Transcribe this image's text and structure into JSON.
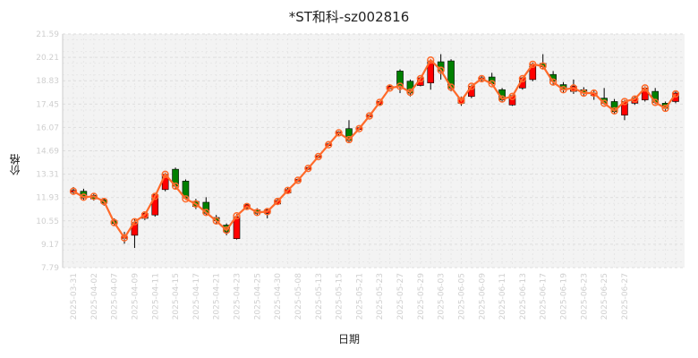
{
  "chart_data": {
    "type": "candlestick",
    "title": "*ST和科-sz002816",
    "xlabel": "日期",
    "ylabel": "价格",
    "ylim": [
      7.79,
      21.59
    ],
    "y_ticks": [
      "7.79",
      "9.17",
      "10.55",
      "11.93",
      "13.31",
      "14.69",
      "16.07",
      "17.45",
      "18.83",
      "20.21",
      "21.59"
    ],
    "grid": true,
    "line_series_color": "#ff6a2a",
    "up_color": "#ff0000",
    "down_color": "#008000",
    "x_tick_labels": [
      "2025-03-31",
      "2025-04-02",
      "2025-04-07",
      "2025-04-09",
      "2025-04-11",
      "2025-04-15",
      "2025-04-17",
      "2025-04-21",
      "2025-04-23",
      "2025-04-25",
      "2025-04-30",
      "2025-05-08",
      "2025-05-13",
      "2025-05-15",
      "2025-05-21",
      "2025-05-23",
      "2025-05-27",
      "2025-05-29",
      "2025-06-03",
      "2025-06-05",
      "2025-06-09",
      "2025-06-11",
      "2025-06-13",
      "2025-06-17",
      "2025-06-19",
      "2025-06-23",
      "2025-06-25",
      "2025-06-27"
    ],
    "candles": [
      {
        "o": 12.25,
        "c": 12.35,
        "h": 12.55,
        "l": 12.1
      },
      {
        "o": 12.3,
        "c": 11.9,
        "h": 12.45,
        "l": 11.8
      },
      {
        "o": 12.05,
        "c": 11.85,
        "h": 12.15,
        "l": 11.75
      },
      {
        "o": 11.8,
        "c": 11.6,
        "h": 11.85,
        "l": 11.45
      },
      {
        "o": 10.55,
        "c": 10.4,
        "h": 10.7,
        "l": 10.3
      },
      {
        "o": 9.55,
        "c": 9.6,
        "h": 9.9,
        "l": 9.2
      },
      {
        "o": 9.7,
        "c": 10.45,
        "h": 10.65,
        "l": 8.95
      },
      {
        "o": 10.7,
        "c": 11.0,
        "h": 11.1,
        "l": 10.6
      },
      {
        "o": 10.9,
        "c": 12.1,
        "h": 12.2,
        "l": 10.8
      },
      {
        "o": 12.4,
        "c": 13.3,
        "h": 13.4,
        "l": 12.3
      },
      {
        "o": 13.6,
        "c": 12.6,
        "h": 13.7,
        "l": 12.4
      },
      {
        "o": 12.9,
        "c": 11.9,
        "h": 13.0,
        "l": 11.8
      },
      {
        "o": 11.7,
        "c": 11.4,
        "h": 11.85,
        "l": 11.25
      },
      {
        "o": 11.65,
        "c": 11.0,
        "h": 11.95,
        "l": 10.9
      },
      {
        "o": 10.75,
        "c": 10.55,
        "h": 10.9,
        "l": 10.4
      },
      {
        "o": 10.3,
        "c": 9.9,
        "h": 10.4,
        "l": 9.7
      },
      {
        "o": 9.5,
        "c": 10.8,
        "h": 10.95,
        "l": 9.45
      },
      {
        "o": 11.3,
        "c": 11.5,
        "h": 11.6,
        "l": 11.2
      },
      {
        "o": 11.2,
        "c": 11.0,
        "h": 11.3,
        "l": 10.85
      },
      {
        "o": 11.0,
        "c": 11.2,
        "h": 11.3,
        "l": 10.7
      },
      {
        "o": 11.55,
        "c": 11.75,
        "h": 11.85,
        "l": 11.5
      },
      {
        "o": 12.2,
        "c": 12.4,
        "h": 12.5,
        "l": 12.15
      },
      {
        "o": 12.9,
        "c": 13.0,
        "h": 13.05,
        "l": 12.85
      },
      {
        "o": 13.6,
        "c": 13.7,
        "h": 13.75,
        "l": 13.55
      },
      {
        "o": 14.3,
        "c": 14.4,
        "h": 14.45,
        "l": 14.25
      },
      {
        "o": 15.0,
        "c": 15.1,
        "h": 15.15,
        "l": 14.95
      },
      {
        "o": 15.7,
        "c": 15.8,
        "h": 15.85,
        "l": 15.6
      },
      {
        "o": 16.0,
        "c": 15.3,
        "h": 16.5,
        "l": 15.2
      },
      {
        "o": 15.95,
        "c": 16.05,
        "h": 16.1,
        "l": 15.9
      },
      {
        "o": 16.7,
        "c": 16.8,
        "h": 16.85,
        "l": 16.65
      },
      {
        "o": 17.45,
        "c": 17.6,
        "h": 17.65,
        "l": 17.4
      },
      {
        "o": 18.35,
        "c": 18.5,
        "h": 18.55,
        "l": 18.3
      },
      {
        "o": 19.4,
        "c": 18.5,
        "h": 19.5,
        "l": 18.1
      },
      {
        "o": 18.8,
        "c": 18.1,
        "h": 18.9,
        "l": 17.9
      },
      {
        "o": 18.55,
        "c": 19.0,
        "h": 19.05,
        "l": 18.5
      },
      {
        "o": 18.7,
        "c": 20.0,
        "h": 20.1,
        "l": 18.3
      },
      {
        "o": 19.95,
        "c": 19.4,
        "h": 20.4,
        "l": 18.9
      },
      {
        "o": 20.0,
        "c": 18.4,
        "h": 20.1,
        "l": 18.2
      },
      {
        "o": 17.5,
        "c": 17.8,
        "h": 17.9,
        "l": 17.35
      },
      {
        "o": 17.9,
        "c": 18.5,
        "h": 18.6,
        "l": 17.8
      },
      {
        "o": 18.9,
        "c": 19.0,
        "h": 19.15,
        "l": 18.8
      },
      {
        "o": 19.05,
        "c": 18.65,
        "h": 19.3,
        "l": 18.55
      },
      {
        "o": 18.3,
        "c": 17.7,
        "h": 18.4,
        "l": 17.6
      },
      {
        "o": 17.4,
        "c": 17.95,
        "h": 18.0,
        "l": 17.35
      },
      {
        "o": 18.4,
        "c": 19.0,
        "h": 19.05,
        "l": 18.3
      },
      {
        "o": 18.9,
        "c": 19.8,
        "h": 19.9,
        "l": 18.8
      },
      {
        "o": 19.85,
        "c": 19.65,
        "h": 20.4,
        "l": 19.5
      },
      {
        "o": 19.2,
        "c": 18.8,
        "h": 19.4,
        "l": 18.6
      },
      {
        "o": 18.6,
        "c": 18.3,
        "h": 18.75,
        "l": 18.1
      },
      {
        "o": 18.2,
        "c": 18.5,
        "h": 18.9,
        "l": 18.05
      },
      {
        "o": 18.3,
        "c": 18.1,
        "h": 18.45,
        "l": 17.9
      },
      {
        "o": 17.95,
        "c": 18.1,
        "h": 18.25,
        "l": 17.7
      },
      {
        "o": 17.8,
        "c": 17.5,
        "h": 18.4,
        "l": 17.4
      },
      {
        "o": 17.6,
        "c": 17.0,
        "h": 17.75,
        "l": 16.9
      },
      {
        "o": 16.8,
        "c": 17.6,
        "h": 17.7,
        "l": 16.5
      },
      {
        "o": 17.5,
        "c": 17.8,
        "h": 17.9,
        "l": 17.4
      },
      {
        "o": 17.7,
        "c": 18.4,
        "h": 18.5,
        "l": 17.6
      },
      {
        "o": 18.2,
        "c": 17.55,
        "h": 18.4,
        "l": 17.45
      },
      {
        "o": 17.5,
        "c": 17.2,
        "h": 17.6,
        "l": 17.05
      },
      {
        "o": 17.6,
        "c": 18.1,
        "h": 18.2,
        "l": 17.5
      }
    ],
    "line_values": [
      12.3,
      11.95,
      12.0,
      11.7,
      10.45,
      9.55,
      10.5,
      10.9,
      12.0,
      13.3,
      12.6,
      11.85,
      11.55,
      11.05,
      10.55,
      10.0,
      10.85,
      11.4,
      11.05,
      11.1,
      11.7,
      12.35,
      12.95,
      13.65,
      14.35,
      15.05,
      15.75,
      15.35,
      16.0,
      16.75,
      17.55,
      18.4,
      18.5,
      18.15,
      18.95,
      20.05,
      19.45,
      18.45,
      17.65,
      18.5,
      18.95,
      18.65,
      17.75,
      17.9,
      18.95,
      19.8,
      19.7,
      18.75,
      18.3,
      18.4,
      18.1,
      18.1,
      17.5,
      17.05,
      17.6,
      17.75,
      18.4,
      17.55,
      17.2,
      18.05
    ]
  }
}
